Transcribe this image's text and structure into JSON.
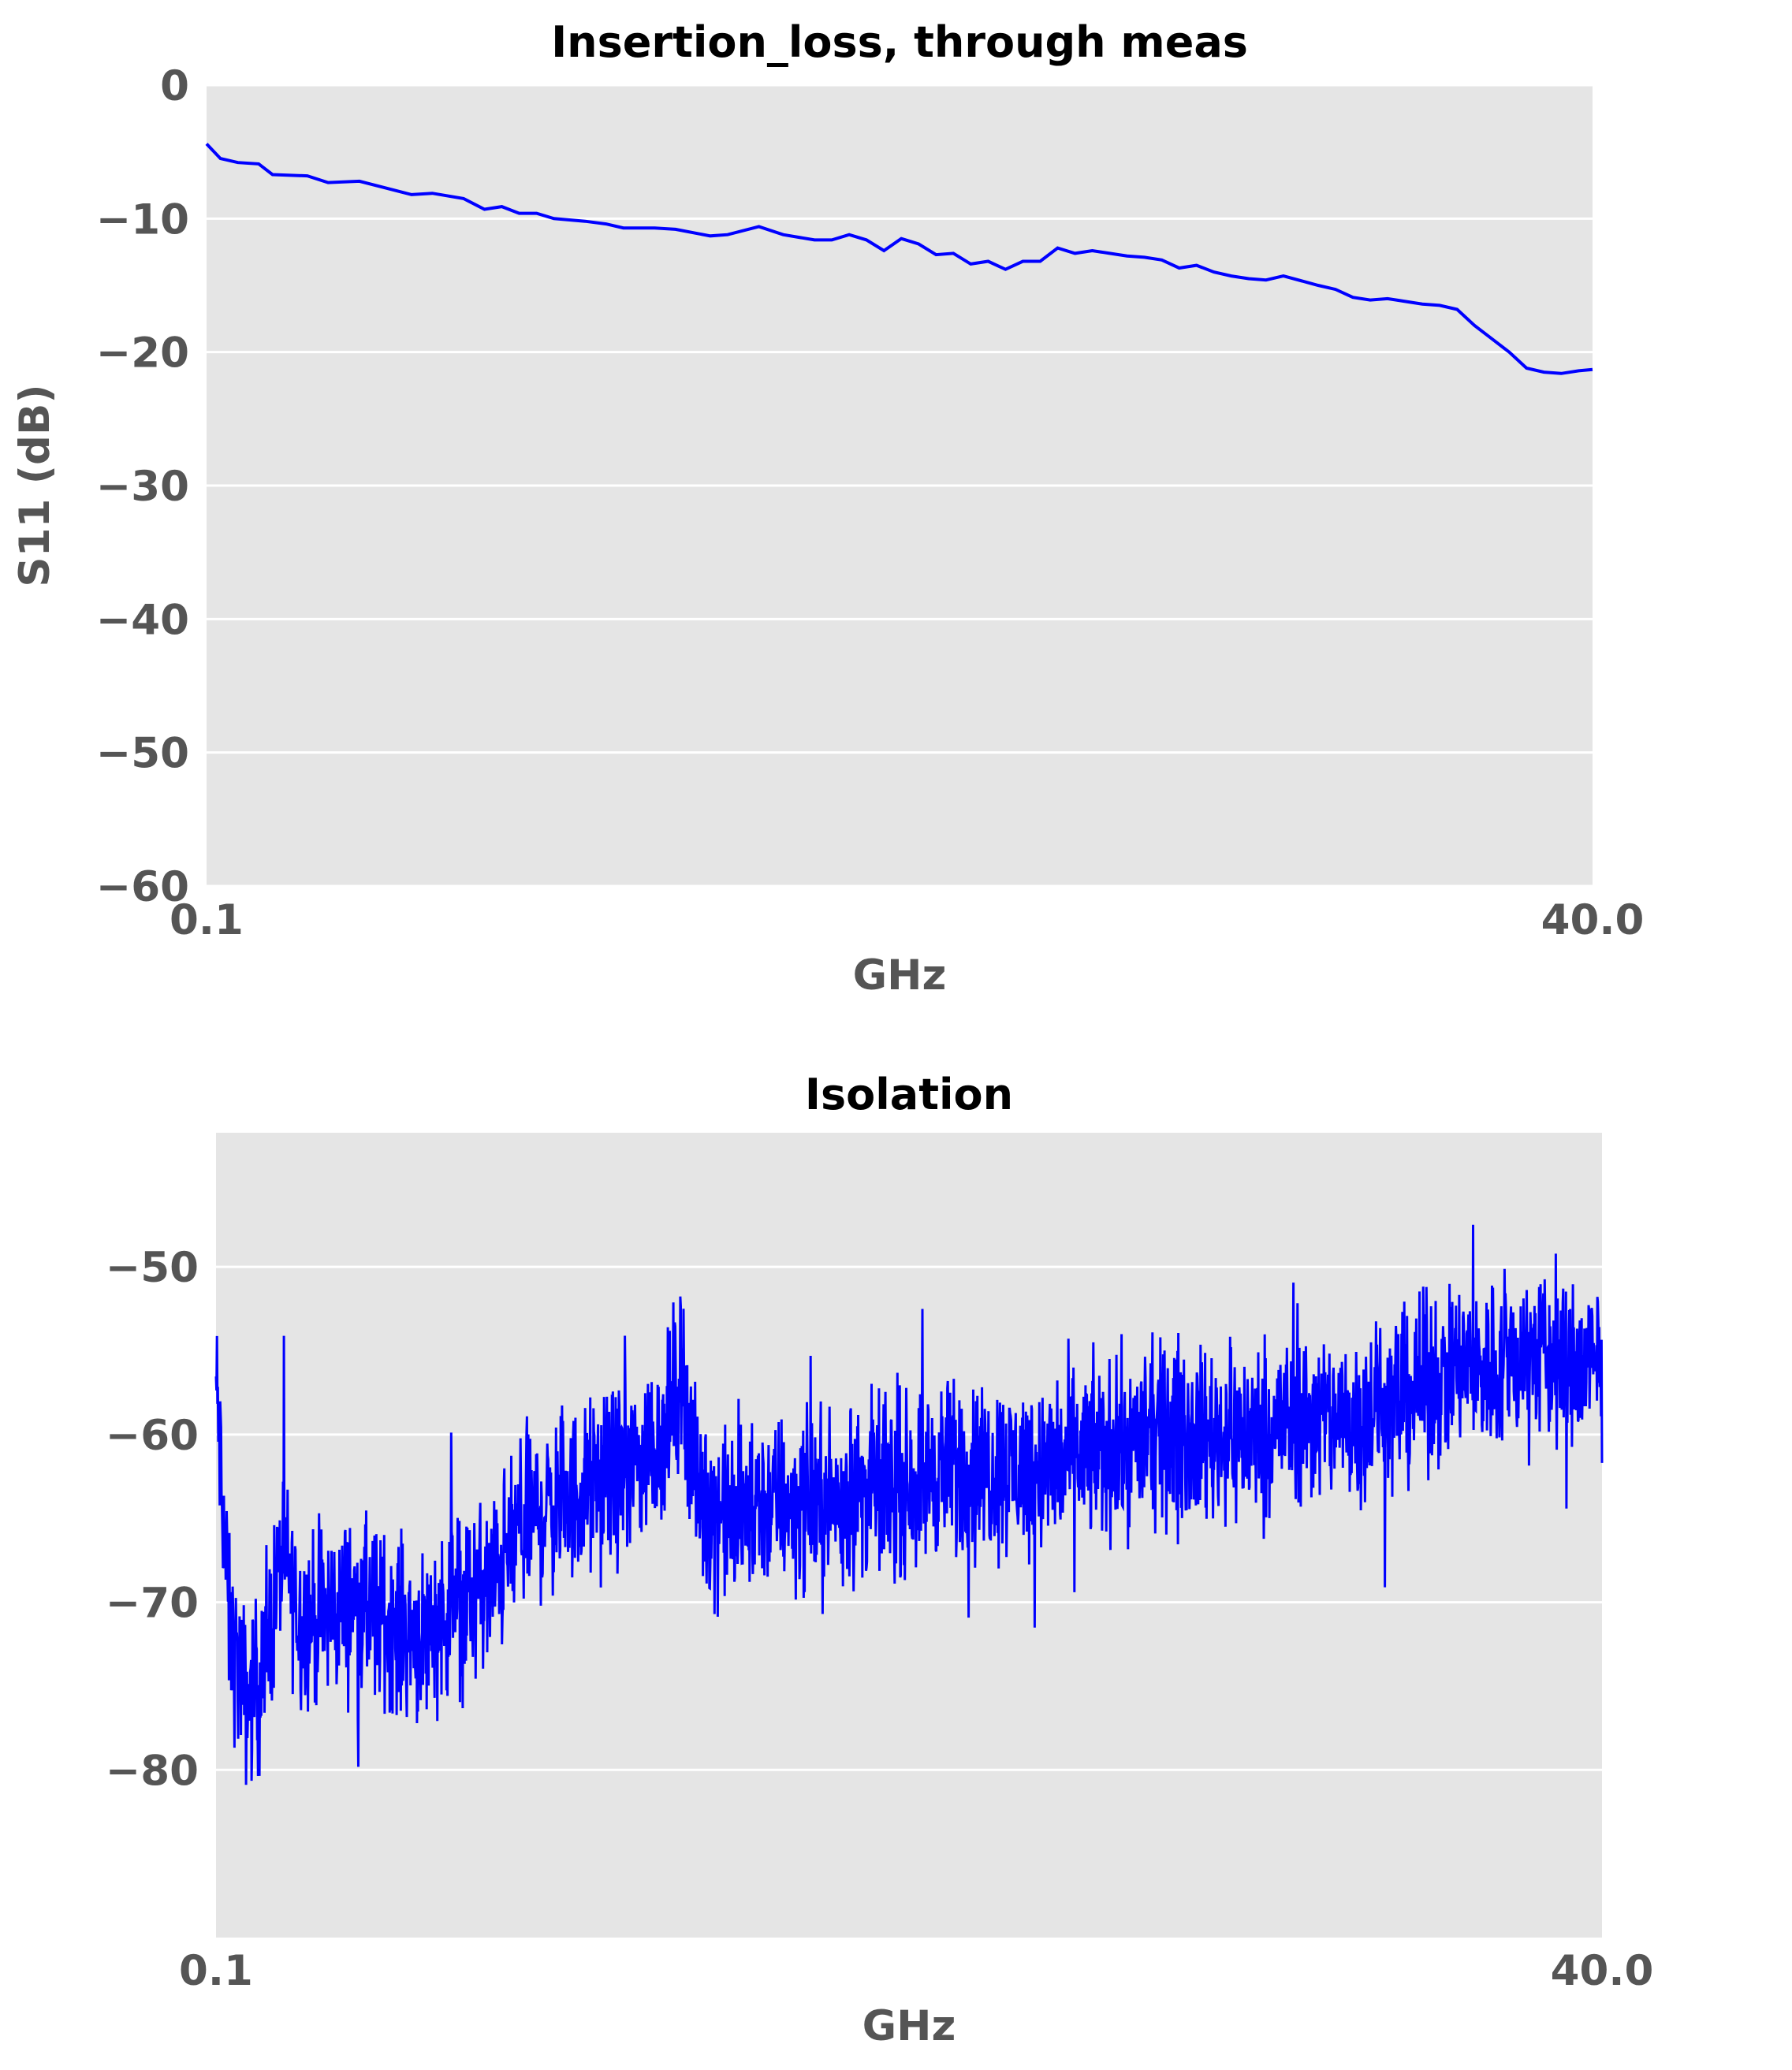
{
  "chart_data": [
    {
      "type": "line",
      "title": "Insertion_loss, through meas",
      "xlabel": "GHz",
      "ylabel": "S11 (dB)",
      "xlim": [
        0.1,
        40.0
      ],
      "ylim": [
        -60,
        0
      ],
      "x_tick_labels": [
        "0.1",
        "40.0"
      ],
      "y_ticks": [
        0,
        -10,
        -20,
        -30,
        -40,
        -50,
        -60
      ],
      "y_tick_labels": [
        "0",
        "−10",
        "−20",
        "−30",
        "−40",
        "−50",
        "−60"
      ],
      "grid": true,
      "background": "#e5e5e5",
      "series": [
        {
          "color": "#0000ff",
          "x": [
            0.1,
            0.5,
            1.0,
            1.6,
            2.0,
            3.0,
            3.6,
            4.5,
            5.1,
            6.0,
            6.6,
            7.5,
            8.1,
            8.6,
            9.1,
            9.6,
            10.1,
            11.0,
            11.6,
            12.1,
            13.0,
            13.6,
            14.6,
            15.1,
            16.0,
            16.7,
            17.6,
            18.1,
            18.6,
            19.1,
            19.6,
            20.1,
            20.6,
            21.1,
            21.6,
            22.1,
            22.6,
            23.1,
            23.6,
            24.1,
            24.6,
            25.1,
            25.6,
            26.1,
            26.6,
            27.1,
            27.6,
            28.1,
            28.6,
            29.1,
            29.6,
            30.1,
            30.6,
            31.1,
            32.1,
            32.6,
            33.1,
            33.6,
            34.1,
            35.1,
            35.6,
            36.1,
            36.6,
            37.1,
            37.6,
            38.1,
            38.6,
            39.1,
            39.6,
            40.0
          ],
          "y": [
            -4.4,
            -5.5,
            -5.8,
            -5.9,
            -6.7,
            -6.8,
            -7.3,
            -7.2,
            -7.6,
            -8.2,
            -8.1,
            -8.5,
            -9.3,
            -9.1,
            -9.6,
            -9.6,
            -10.0,
            -10.2,
            -10.4,
            -10.7,
            -10.7,
            -10.8,
            -11.3,
            -11.2,
            -10.6,
            -11.2,
            -11.6,
            -11.6,
            -11.2,
            -11.6,
            -12.4,
            -11.5,
            -11.9,
            -12.7,
            -12.6,
            -13.4,
            -13.2,
            -13.8,
            -13.2,
            -13.2,
            -12.2,
            -12.6,
            -12.4,
            -12.6,
            -12.8,
            -12.9,
            -13.1,
            -13.7,
            -13.5,
            -14.0,
            -14.3,
            -14.5,
            -14.6,
            -14.3,
            -15.0,
            -15.3,
            -15.9,
            -16.1,
            -16.0,
            -16.4,
            -16.5,
            -16.8,
            -18.0,
            -19.0,
            -20.0,
            -21.2,
            -21.5,
            -21.6,
            -21.4,
            -21.3
          ]
        }
      ]
    },
    {
      "type": "line",
      "title": "Isolation",
      "xlabel": "GHz",
      "ylabel": "",
      "xlim": [
        0.1,
        40.0
      ],
      "ylim": [
        -90,
        -42
      ],
      "x_tick_labels": [
        "0.1",
        "40.0"
      ],
      "y_ticks": [
        -50,
        -60,
        -70,
        -80
      ],
      "y_tick_labels": [
        "−50",
        "−60",
        "−70",
        "−80"
      ],
      "grid": true,
      "background": "#e5e5e5",
      "series": [
        {
          "color": "#0000ff",
          "x": [
            0.1,
            0.5,
            1.0,
            1.5,
            2.0,
            2.5,
            3.0,
            4.0,
            5.0,
            6.0,
            7.0,
            8.0,
            9.0,
            10.0,
            11.0,
            12.0,
            13.0,
            13.5,
            14.0,
            15.0,
            16.0,
            17.0,
            18.0,
            19.0,
            20.0,
            21.0,
            22.0,
            23.0,
            24.0,
            25.0,
            26.0,
            27.0,
            28.0,
            29.0,
            30.0,
            31.0,
            32.0,
            33.0,
            34.0,
            35.0,
            36.0,
            37.0,
            38.0,
            39.0,
            40.0
          ],
          "y": [
            -57,
            -72,
            -76,
            -74,
            -67,
            -71,
            -71,
            -70,
            -71,
            -72,
            -70,
            -69,
            -65,
            -64,
            -63,
            -62,
            -60,
            -56,
            -64,
            -65,
            -64,
            -64,
            -64,
            -63,
            -63,
            -62,
            -62,
            -62,
            -62,
            -61,
            -61,
            -60,
            -60,
            -60,
            -60,
            -59,
            -59,
            -59,
            -58,
            -57,
            -56,
            -56,
            -55,
            -56,
            -56
          ],
          "envelope_note": "dense noisy trace; noise range approx ±5 dB about the values"
        }
      ]
    }
  ]
}
